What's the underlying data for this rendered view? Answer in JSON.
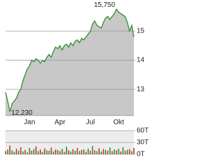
{
  "chart_data": [
    {
      "type": "area",
      "categories": [
        null,
        null,
        null,
        null,
        null,
        null,
        null,
        null,
        null,
        null,
        null,
        "Jan",
        null,
        null,
        null,
        null,
        null,
        null,
        null,
        null,
        null,
        null,
        null,
        null,
        null,
        "Apr",
        null,
        null,
        null,
        null,
        null,
        null,
        null,
        null,
        null,
        null,
        null,
        null,
        null,
        "Jul",
        null,
        null,
        null,
        null,
        null,
        null,
        null,
        null,
        null,
        null,
        null,
        null,
        "Okt",
        null,
        null,
        null,
        null,
        null,
        null,
        null
      ],
      "values": [
        12.9,
        12.6,
        12.23,
        12.5,
        12.6,
        12.7,
        12.9,
        13.0,
        13.3,
        13.5,
        13.7,
        13.8,
        14.0,
        13.95,
        14.05,
        14.0,
        13.9,
        14.0,
        13.95,
        14.1,
        14.2,
        14.1,
        14.3,
        14.45,
        14.4,
        14.5,
        14.35,
        14.5,
        14.55,
        14.45,
        14.6,
        14.5,
        14.65,
        14.7,
        14.6,
        14.75,
        14.7,
        14.8,
        14.9,
        15.0,
        15.25,
        15.35,
        15.2,
        15.15,
        15.1,
        15.3,
        15.45,
        15.5,
        15.4,
        15.5,
        15.6,
        15.75,
        15.65,
        15.6,
        15.55,
        15.5,
        15.3,
        15.0,
        15.2,
        14.8
      ],
      "value_labels": [
        null,
        null,
        "12,230",
        null,
        null,
        null,
        null,
        null,
        null,
        null,
        null,
        null,
        null,
        null,
        null,
        null,
        null,
        null,
        null,
        null,
        null,
        null,
        null,
        null,
        null,
        null,
        null,
        null,
        null,
        null,
        null,
        null,
        null,
        null,
        null,
        null,
        null,
        null,
        null,
        null,
        null,
        null,
        null,
        null,
        null,
        null,
        null,
        null,
        null,
        null,
        null,
        "15,750",
        null,
        null,
        null,
        null,
        null,
        null,
        null,
        null
      ],
      "color": "#2e8b2e",
      "fill": "#c8c8c8",
      "ylim": [
        12.1,
        15.95
      ],
      "yticks": [
        13,
        14,
        15
      ],
      "grid": true
    },
    {
      "type": "bar",
      "values": [
        8,
        12,
        22,
        10,
        6,
        14,
        9,
        18,
        7,
        11,
        5,
        16,
        9,
        13,
        20,
        8,
        12,
        6,
        15,
        10,
        9,
        17,
        7,
        12,
        11,
        8,
        14,
        6,
        19,
        10,
        7,
        13,
        9,
        16,
        8,
        11,
        12,
        6,
        14,
        9,
        21,
        10,
        8,
        15,
        7,
        13,
        11,
        9,
        17,
        8,
        12,
        10,
        14,
        7,
        18,
        9,
        11,
        13,
        8,
        16
      ],
      "colors": [
        "#c0392b",
        "#2e8b2e",
        "#c0392b",
        "#2e8b2e",
        "#2e8b2e",
        "#c0392b",
        "#2e8b2e",
        "#c0392b",
        "#2e8b2e",
        "#c0392b",
        "#2e8b2e",
        "#2e8b2e",
        "#c0392b",
        "#2e8b2e",
        "#c0392b",
        "#2e8b2e",
        "#c0392b",
        "#2e8b2e",
        "#c0392b",
        "#2e8b2e",
        "#2e8b2e",
        "#c0392b",
        "#2e8b2e",
        "#c0392b",
        "#2e8b2e",
        "#c0392b",
        "#2e8b2e",
        "#c0392b",
        "#2e8b2e",
        "#c0392b",
        "#2e8b2e",
        "#c0392b",
        "#2e8b2e",
        "#c0392b",
        "#2e8b2e",
        "#c0392b",
        "#2e8b2e",
        "#c0392b",
        "#2e8b2e",
        "#c0392b",
        "#2e8b2e",
        "#c0392b",
        "#2e8b2e",
        "#c0392b",
        "#2e8b2e",
        "#c0392b",
        "#2e8b2e",
        "#c0392b",
        "#2e8b2e",
        "#c0392b",
        "#2e8b2e",
        "#c0392b",
        "#2e8b2e",
        "#c0392b",
        "#2e8b2e",
        "#c0392b",
        "#2e8b2e",
        "#c0392b",
        "#2e8b2e",
        "#c0392b"
      ],
      "ylim": [
        0,
        60
      ],
      "yticks": [
        {
          "value": 0,
          "label": "0T"
        },
        {
          "value": 30,
          "label": "30T"
        },
        {
          "value": 60,
          "label": "60T"
        }
      ],
      "grid": true
    }
  ]
}
